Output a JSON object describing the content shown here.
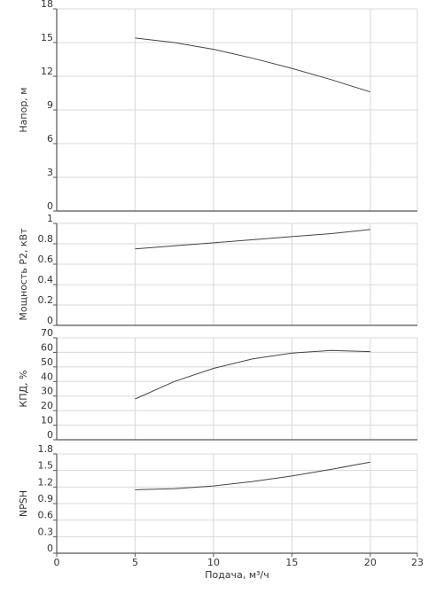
{
  "chart_data": [
    {
      "type": "line",
      "ylabel": "Напор, м",
      "xlim": [
        0,
        23
      ],
      "ylim": [
        0,
        18
      ],
      "yticks": [
        "0",
        "3",
        "6",
        "9",
        "12",
        "15",
        "18"
      ],
      "ytick_values": [
        0,
        3,
        6,
        9,
        12,
        15,
        18
      ],
      "grid": true,
      "series": [
        {
          "x": [
            5,
            7.5,
            10,
            12.5,
            15,
            17.5,
            20
          ],
          "y": [
            15.4,
            15.0,
            14.4,
            13.6,
            12.7,
            11.7,
            10.6
          ]
        }
      ]
    },
    {
      "type": "line",
      "ylabel": "Мощность P2, кВт",
      "xlim": [
        0,
        23
      ],
      "ylim": [
        0,
        1
      ],
      "yticks": [
        "0",
        "0.2",
        "0.4",
        "0.6",
        "0.8",
        "1"
      ],
      "ytick_values": [
        0,
        0.2,
        0.4,
        0.6,
        0.8,
        1
      ],
      "grid": true,
      "series": [
        {
          "x": [
            5,
            7.5,
            10,
            12.5,
            15,
            17.5,
            20
          ],
          "y": [
            0.75,
            0.78,
            0.81,
            0.84,
            0.87,
            0.9,
            0.94
          ]
        }
      ]
    },
    {
      "type": "line",
      "ylabel": "КПД, %",
      "xlim": [
        0,
        23
      ],
      "ylim": [
        0,
        70
      ],
      "yticks": [
        "0",
        "10",
        "20",
        "30",
        "40",
        "50",
        "60",
        "70"
      ],
      "ytick_values": [
        0,
        10,
        20,
        30,
        40,
        50,
        60,
        70
      ],
      "grid": true,
      "series": [
        {
          "x": [
            5,
            7.5,
            10,
            12.5,
            15,
            17.5,
            20
          ],
          "y": [
            28,
            40,
            49,
            55.5,
            59.5,
            61.3,
            60.5
          ]
        }
      ]
    },
    {
      "type": "line",
      "ylabel": "NPSH",
      "xlabel": "Подача, м³/ч",
      "xlim": [
        0,
        23
      ],
      "ylim": [
        0,
        1.8
      ],
      "xticks": [
        "0",
        "5",
        "10",
        "15",
        "20",
        "23"
      ],
      "xtick_values": [
        0,
        5,
        10,
        15,
        20,
        23
      ],
      "yticks": [
        "0",
        "0.3",
        "0.6",
        "0.9",
        "1.2",
        "1.5",
        "1.8"
      ],
      "ytick_values": [
        0,
        0.3,
        0.6,
        0.9,
        1.2,
        1.5,
        1.8
      ],
      "grid": true,
      "series": [
        {
          "x": [
            5,
            7.5,
            10,
            12.5,
            15,
            17.5,
            20
          ],
          "y": [
            1.15,
            1.17,
            1.22,
            1.3,
            1.4,
            1.52,
            1.65
          ]
        }
      ]
    }
  ]
}
